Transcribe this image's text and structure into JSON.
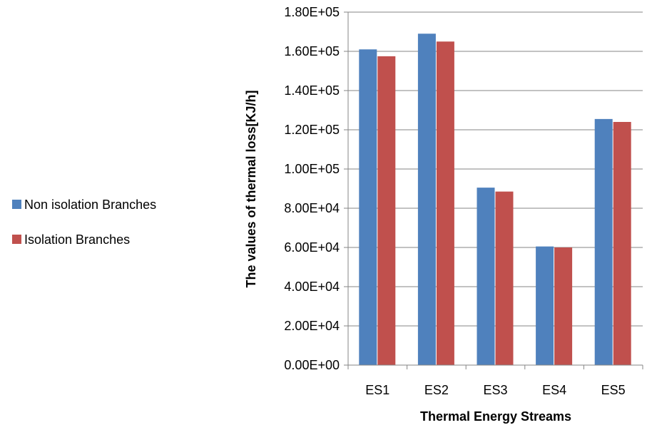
{
  "chart_data": {
    "type": "bar",
    "title": "",
    "xlabel": "Thermal Energy Streams",
    "ylabel": "The values of thermal loss[KJ/h]",
    "categories": [
      "ES1",
      "ES2",
      "ES3",
      "ES4",
      "ES5"
    ],
    "series": [
      {
        "name": "Non isolation Branches",
        "color": "#4F81BD",
        "values": [
          161000,
          169000,
          90500,
          60500,
          125500
        ]
      },
      {
        "name": "Isolation Branches",
        "color": "#C0504D",
        "values": [
          157500,
          165000,
          88500,
          60000,
          124000
        ]
      }
    ],
    "ylim": [
      0,
      180000
    ],
    "yticks": [
      "0.00E+00",
      "2.00E+04",
      "4.00E+04",
      "6.00E+04",
      "8.00E+04",
      "1.00E+05",
      "1.20E+05",
      "1.40E+05",
      "1.60E+05",
      "1.80E+05"
    ],
    "grid": true,
    "legend_position": "left"
  }
}
